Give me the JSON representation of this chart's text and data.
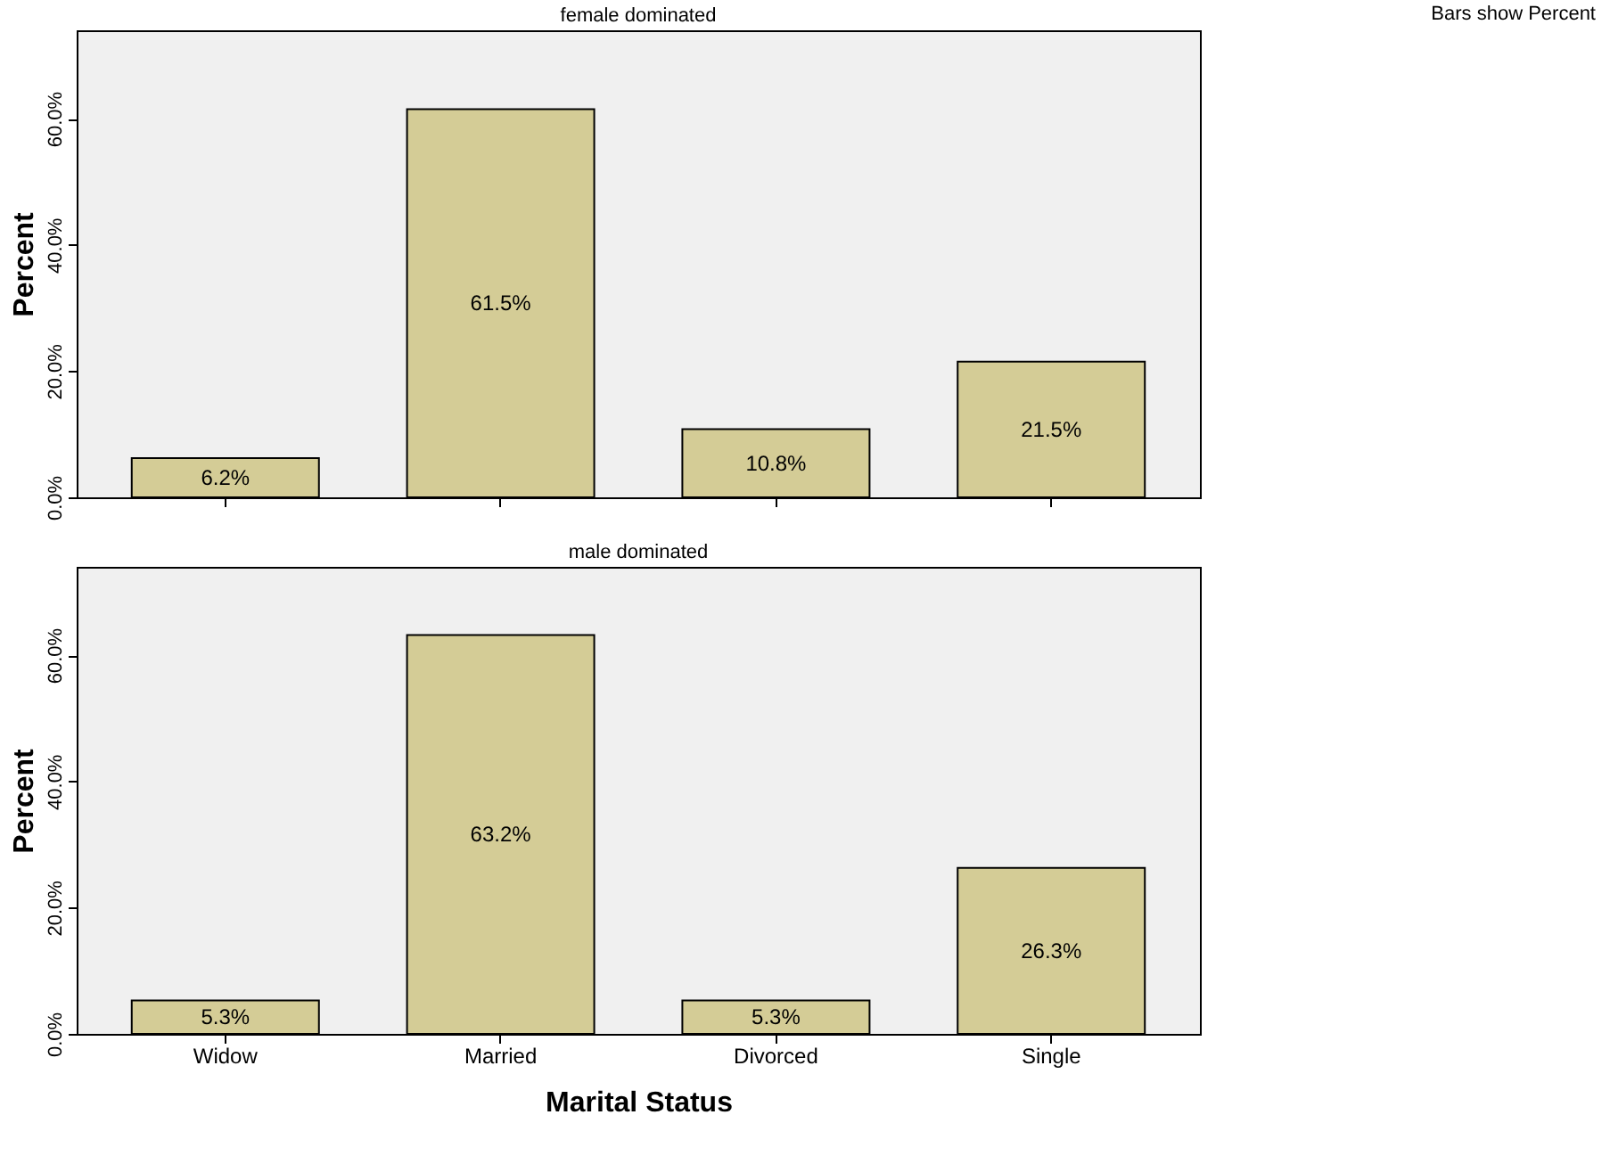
{
  "chart_data": [
    {
      "type": "bar",
      "title": "female dominated",
      "ylabel": "Percent",
      "categories": [
        null,
        null,
        null,
        null
      ],
      "tick_labels": "y",
      "series": [
        {
          "color": "#d4cc96",
          "values": [
            6.2,
            61.5,
            10.8,
            21.5
          ],
          "value_labels": [
            "6.2%",
            "61.5%",
            "10.8%",
            "21.5%"
          ]
        }
      ],
      "ylim": [
        0,
        74
      ],
      "yticks": [
        {
          "value": 0,
          "label": "0.0%"
        },
        {
          "value": 20,
          "label": "20.0%"
        },
        {
          "value": 40,
          "label": "40.0%"
        },
        {
          "value": 60,
          "label": "60.0%"
        }
      ],
      "grid": false,
      "legend": false,
      "annotations": [
        "Bars show Percent"
      ]
    },
    {
      "type": "bar",
      "title": "male dominated",
      "xlabel": "Marital Status",
      "ylabel": "Percent",
      "categories": [
        "Widow",
        "Married",
        "Divorced",
        "Single"
      ],
      "series": [
        {
          "color": "#d4cc96",
          "values": [
            5.3,
            63.2,
            5.3,
            26.3
          ],
          "value_labels": [
            "5.3%",
            "63.2%",
            "5.3%",
            "26.3%"
          ]
        }
      ],
      "ylim": [
        0,
        74
      ],
      "yticks": [
        {
          "value": 0,
          "label": "0.0%"
        },
        {
          "value": 20,
          "label": "20.0%"
        },
        {
          "value": 40,
          "label": "40.0%"
        },
        {
          "value": 60,
          "label": "60.0%"
        }
      ],
      "grid": false,
      "legend": false
    }
  ]
}
